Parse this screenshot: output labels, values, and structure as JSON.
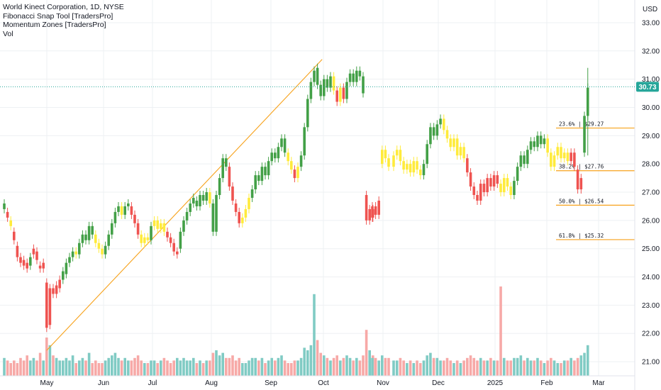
{
  "legend": {
    "title": "World Kinect Corporation, 1D, NYSE",
    "indicator_1": "Fibonacci Snap Tool [TradersPro]",
    "indicator_2": "Momentum Zones [TradersPro]",
    "indicator_3": "Vol"
  },
  "currency": "USD",
  "last_price": "30.73",
  "colors": {
    "up": "#43a047",
    "down": "#ef5350",
    "neutral": "#ffeb3b",
    "vol_up": "#80cbc4",
    "vol_down": "#f7a9a7",
    "fib": "#f7a21b",
    "last_price": "#26a69a",
    "grid": "#eef0f3"
  },
  "chart_data": {
    "type": "candlestick",
    "ylim": [
      20.5,
      33.25
    ],
    "y_ticks": [
      "21.00",
      "22.00",
      "23.00",
      "24.00",
      "25.00",
      "26.00",
      "27.00",
      "28.00",
      "29.00",
      "30.00",
      "31.00",
      "32.00",
      "33.00"
    ],
    "x_ticks": [
      "May",
      "Jun",
      "Jul",
      "Aug",
      "Sep",
      "Oct",
      "Nov",
      "Dec",
      "2025",
      "Feb",
      "Mar"
    ],
    "fib_levels": [
      {
        "label": "23.6% | $29.27",
        "value": 29.27
      },
      {
        "label": "38.2% | $27.76",
        "value": 27.76
      },
      {
        "label": "50.0% | $26.54",
        "value": 26.54
      },
      {
        "label": "61.8% | $25.32",
        "value": 25.32
      }
    ],
    "swing_line": {
      "from": 21.4,
      "to": 31.7
    },
    "candles": [
      {
        "o": 26.4,
        "c": 26.6,
        "z": "up",
        "v": 0.7
      },
      {
        "o": 26.3,
        "c": 26.1,
        "z": "down",
        "v": 0.6
      },
      {
        "o": 26.0,
        "c": 25.8,
        "z": "neutral",
        "v": 0.5
      },
      {
        "o": 25.6,
        "c": 25.3,
        "z": "down",
        "v": 0.6
      },
      {
        "o": 25.1,
        "c": 24.7,
        "z": "down",
        "v": 0.5
      },
      {
        "o": 24.7,
        "c": 24.5,
        "z": "down",
        "v": 0.7
      },
      {
        "o": 24.6,
        "c": 24.4,
        "z": "down",
        "v": 0.6
      },
      {
        "o": 24.5,
        "c": 24.3,
        "z": "down",
        "v": 0.8
      },
      {
        "o": 24.4,
        "c": 24.7,
        "z": "up",
        "v": 0.6
      },
      {
        "o": 24.8,
        "c": 25.0,
        "z": "down",
        "v": 0.7
      },
      {
        "o": 24.9,
        "c": 24.6,
        "z": "down",
        "v": 0.6
      },
      {
        "o": 24.4,
        "c": 24.3,
        "z": "down",
        "v": 0.9
      },
      {
        "o": 24.3,
        "c": 24.5,
        "z": "down",
        "v": 0.6
      },
      {
        "o": 23.8,
        "c": 22.2,
        "z": "down",
        "v": 1.5
      },
      {
        "o": 22.3,
        "c": 23.6,
        "z": "down",
        "v": 1.2
      },
      {
        "o": 23.6,
        "c": 23.4,
        "z": "down",
        "v": 0.8
      },
      {
        "o": 23.4,
        "c": 23.7,
        "z": "down",
        "v": 0.7
      },
      {
        "o": 23.6,
        "c": 23.9,
        "z": "down",
        "v": 0.6
      },
      {
        "o": 23.9,
        "c": 24.2,
        "z": "up",
        "v": 0.6
      },
      {
        "o": 24.1,
        "c": 24.5,
        "z": "up",
        "v": 0.7
      },
      {
        "o": 24.5,
        "c": 24.7,
        "z": "up",
        "v": 0.6
      },
      {
        "o": 24.7,
        "c": 24.9,
        "z": "up",
        "v": 0.8
      },
      {
        "o": 24.9,
        "c": 24.8,
        "z": "neutral",
        "v": 0.5
      },
      {
        "o": 24.8,
        "c": 25.2,
        "z": "up",
        "v": 0.6
      },
      {
        "o": 25.2,
        "c": 25.5,
        "z": "up",
        "v": 0.7
      },
      {
        "o": 25.5,
        "c": 25.3,
        "z": "up",
        "v": 0.6
      },
      {
        "o": 25.3,
        "c": 25.8,
        "z": "up",
        "v": 0.9
      },
      {
        "o": 25.8,
        "c": 25.5,
        "z": "up",
        "v": 0.5
      },
      {
        "o": 25.5,
        "c": 25.2,
        "z": "neutral",
        "v": 0.6
      },
      {
        "o": 25.2,
        "c": 25.0,
        "z": "neutral",
        "v": 0.5
      },
      {
        "o": 25.0,
        "c": 24.8,
        "z": "neutral",
        "v": 0.5
      },
      {
        "o": 24.8,
        "c": 25.1,
        "z": "up",
        "v": 0.6
      },
      {
        "o": 25.1,
        "c": 25.5,
        "z": "up",
        "v": 0.7
      },
      {
        "o": 25.5,
        "c": 25.9,
        "z": "up",
        "v": 0.8
      },
      {
        "o": 25.9,
        "c": 26.3,
        "z": "up",
        "v": 0.9
      },
      {
        "o": 26.3,
        "c": 26.5,
        "z": "up",
        "v": 0.7
      },
      {
        "o": 26.5,
        "c": 26.2,
        "z": "neutral",
        "v": 0.6
      },
      {
        "o": 26.2,
        "c": 26.5,
        "z": "up",
        "v": 0.7
      },
      {
        "o": 26.5,
        "c": 26.6,
        "z": "up",
        "v": 0.6
      },
      {
        "o": 26.5,
        "c": 26.2,
        "z": "down",
        "v": 0.6
      },
      {
        "o": 26.2,
        "c": 25.9,
        "z": "down",
        "v": 0.7
      },
      {
        "o": 25.9,
        "c": 25.5,
        "z": "down",
        "v": 0.8
      },
      {
        "o": 25.5,
        "c": 25.2,
        "z": "neutral",
        "v": 0.6
      },
      {
        "o": 25.2,
        "c": 25.4,
        "z": "neutral",
        "v": 0.5
      },
      {
        "o": 25.4,
        "c": 25.3,
        "z": "neutral",
        "v": 0.5
      },
      {
        "o": 25.3,
        "c": 25.8,
        "z": "up",
        "v": 0.6
      },
      {
        "o": 25.8,
        "c": 26.0,
        "z": "neutral",
        "v": 0.6
      },
      {
        "o": 26.0,
        "c": 25.7,
        "z": "neutral",
        "v": 0.5
      },
      {
        "o": 25.7,
        "c": 25.9,
        "z": "neutral",
        "v": 0.6
      },
      {
        "o": 25.9,
        "c": 25.6,
        "z": "neutral",
        "v": 0.7
      },
      {
        "o": 25.6,
        "c": 25.4,
        "z": "down",
        "v": 0.6
      },
      {
        "o": 25.4,
        "c": 25.2,
        "z": "down",
        "v": 0.5
      },
      {
        "o": 25.2,
        "c": 24.9,
        "z": "down",
        "v": 0.6
      },
      {
        "o": 24.8,
        "c": 24.9,
        "z": "down",
        "v": 0.7
      },
      {
        "o": 25.0,
        "c": 25.6,
        "z": "up",
        "v": 0.6
      },
      {
        "o": 25.6,
        "c": 26.0,
        "z": "up",
        "v": 0.7
      },
      {
        "o": 26.0,
        "c": 26.3,
        "z": "up",
        "v": 0.6
      },
      {
        "o": 26.3,
        "c": 26.6,
        "z": "up",
        "v": 0.6
      },
      {
        "o": 26.6,
        "c": 26.8,
        "z": "up",
        "v": 0.7
      },
      {
        "o": 26.7,
        "c": 26.5,
        "z": "up",
        "v": 0.5
      },
      {
        "o": 26.5,
        "c": 26.9,
        "z": "up",
        "v": 0.6
      },
      {
        "o": 26.9,
        "c": 26.7,
        "z": "up",
        "v": 0.5
      },
      {
        "o": 26.7,
        "c": 27.0,
        "z": "up",
        "v": 0.6
      },
      {
        "o": 27.0,
        "c": 26.6,
        "z": "neutral",
        "v": 0.6
      },
      {
        "o": 26.6,
        "c": 25.6,
        "z": "up",
        "v": 0.9
      },
      {
        "o": 25.6,
        "c": 26.9,
        "z": "up",
        "v": 1.0
      },
      {
        "o": 26.9,
        "c": 27.5,
        "z": "up",
        "v": 0.8
      },
      {
        "o": 27.5,
        "c": 28.2,
        "z": "up",
        "v": 0.9
      },
      {
        "o": 28.2,
        "c": 27.9,
        "z": "up",
        "v": 0.7
      },
      {
        "o": 27.9,
        "c": 27.2,
        "z": "down",
        "v": 0.7
      },
      {
        "o": 27.2,
        "c": 26.7,
        "z": "down",
        "v": 0.8
      },
      {
        "o": 26.6,
        "c": 26.3,
        "z": "down",
        "v": 0.6
      },
      {
        "o": 26.3,
        "c": 25.9,
        "z": "down",
        "v": 0.7
      },
      {
        "o": 25.9,
        "c": 26.1,
        "z": "neutral",
        "v": 0.5
      },
      {
        "o": 26.1,
        "c": 26.4,
        "z": "neutral",
        "v": 0.5
      },
      {
        "o": 26.4,
        "c": 26.8,
        "z": "neutral",
        "v": 0.6
      },
      {
        "o": 26.8,
        "c": 27.1,
        "z": "up",
        "v": 0.7
      },
      {
        "o": 27.1,
        "c": 27.6,
        "z": "up",
        "v": 0.7
      },
      {
        "o": 27.6,
        "c": 27.4,
        "z": "up",
        "v": 0.6
      },
      {
        "o": 27.4,
        "c": 27.9,
        "z": "up",
        "v": 0.7
      },
      {
        "o": 27.9,
        "c": 27.6,
        "z": "up",
        "v": 0.5
      },
      {
        "o": 27.6,
        "c": 28.1,
        "z": "up",
        "v": 0.6
      },
      {
        "o": 28.1,
        "c": 28.4,
        "z": "up",
        "v": 0.7
      },
      {
        "o": 28.4,
        "c": 28.2,
        "z": "up",
        "v": 0.6
      },
      {
        "o": 28.2,
        "c": 28.6,
        "z": "up",
        "v": 0.7
      },
      {
        "o": 28.6,
        "c": 28.9,
        "z": "up",
        "v": 0.8
      },
      {
        "o": 28.9,
        "c": 28.4,
        "z": "up",
        "v": 0.6
      },
      {
        "o": 28.4,
        "c": 28.1,
        "z": "neutral",
        "v": 0.5
      },
      {
        "o": 28.1,
        "c": 27.8,
        "z": "neutral",
        "v": 0.5
      },
      {
        "o": 27.8,
        "c": 27.5,
        "z": "down",
        "v": 0.6
      },
      {
        "o": 27.5,
        "c": 27.9,
        "z": "neutral",
        "v": 0.6
      },
      {
        "o": 27.9,
        "c": 28.3,
        "z": "up",
        "v": 0.7
      },
      {
        "o": 28.3,
        "c": 29.3,
        "z": "up",
        "v": 1.1
      },
      {
        "o": 29.3,
        "c": 30.3,
        "z": "up",
        "v": 1.0
      },
      {
        "o": 30.3,
        "c": 30.9,
        "z": "up",
        "v": 1.2
      },
      {
        "o": 30.9,
        "c": 31.3,
        "z": "up",
        "v": 3.2
      },
      {
        "o": 31.4,
        "c": 30.8,
        "z": "up",
        "v": 1.4
      },
      {
        "o": 30.8,
        "c": 30.4,
        "z": "up",
        "v": 0.9
      },
      {
        "o": 30.4,
        "c": 31.0,
        "z": "up",
        "v": 0.8
      },
      {
        "o": 31.0,
        "c": 30.7,
        "z": "up",
        "v": 0.7
      },
      {
        "o": 30.7,
        "c": 31.1,
        "z": "up",
        "v": 0.6
      },
      {
        "o": 31.1,
        "c": 30.6,
        "z": "neutral",
        "v": 0.7
      },
      {
        "o": 30.6,
        "c": 30.2,
        "z": "down",
        "v": 0.8
      },
      {
        "o": 30.2,
        "c": 30.7,
        "z": "neutral",
        "v": 0.6
      },
      {
        "o": 30.7,
        "c": 30.3,
        "z": "down",
        "v": 0.7
      },
      {
        "o": 30.3,
        "c": 30.9,
        "z": "up",
        "v": 0.8
      },
      {
        "o": 30.9,
        "c": 31.2,
        "z": "up",
        "v": 0.7
      },
      {
        "o": 31.2,
        "c": 30.9,
        "z": "up",
        "v": 0.6
      },
      {
        "o": 30.9,
        "c": 31.3,
        "z": "up",
        "v": 0.7
      },
      {
        "o": 31.3,
        "c": 31.1,
        "z": "up",
        "v": 0.6
      },
      {
        "o": 31.1,
        "c": 30.5,
        "z": "up",
        "v": 0.8
      },
      {
        "o": 26.9,
        "c": 26.0,
        "z": "down",
        "v": 1.8
      },
      {
        "o": 26.0,
        "c": 26.4,
        "z": "down",
        "v": 1.0
      },
      {
        "o": 26.4,
        "c": 26.1,
        "z": "down",
        "v": 0.8
      },
      {
        "o": 26.1,
        "c": 26.5,
        "z": "down",
        "v": 0.7
      },
      {
        "o": 26.5,
        "c": 26.2,
        "z": "down",
        "v": 0.7
      },
      {
        "o": 26.2,
        "c": 26.7,
        "z": "down",
        "v": 0.6
      },
      {
        "o": 28.0,
        "c": 28.5,
        "z": "neutral",
        "v": 0.8
      },
      {
        "o": 28.5,
        "c": 28.2,
        "z": "neutral",
        "v": 0.7
      },
      {
        "o": 28.2,
        "c": 27.9,
        "z": "neutral",
        "v": 0.7
      },
      {
        "o": 27.9,
        "c": 28.3,
        "z": "neutral",
        "v": 0.6
      },
      {
        "o": 28.3,
        "c": 28.5,
        "z": "neutral",
        "v": 0.6
      },
      {
        "o": 28.5,
        "c": 28.1,
        "z": "neutral",
        "v": 0.7
      },
      {
        "o": 28.1,
        "c": 27.8,
        "z": "neutral",
        "v": 0.6
      },
      {
        "o": 27.8,
        "c": 28.0,
        "z": "neutral",
        "v": 0.5
      },
      {
        "o": 28.0,
        "c": 27.7,
        "z": "neutral",
        "v": 0.6
      },
      {
        "o": 27.7,
        "c": 28.1,
        "z": "neutral",
        "v": 0.5
      },
      {
        "o": 28.1,
        "c": 27.8,
        "z": "neutral",
        "v": 0.6
      },
      {
        "o": 27.8,
        "c": 27.6,
        "z": "neutral",
        "v": 0.5
      },
      {
        "o": 27.6,
        "c": 28.0,
        "z": "up",
        "v": 0.6
      },
      {
        "o": 28.0,
        "c": 28.7,
        "z": "up",
        "v": 0.8
      },
      {
        "o": 28.7,
        "c": 29.3,
        "z": "up",
        "v": 0.9
      },
      {
        "o": 29.3,
        "c": 29.0,
        "z": "up",
        "v": 0.7
      },
      {
        "o": 29.0,
        "c": 29.4,
        "z": "up",
        "v": 0.7
      },
      {
        "o": 29.4,
        "c": 29.6,
        "z": "up",
        "v": 0.6
      },
      {
        "o": 29.6,
        "c": 29.2,
        "z": "neutral",
        "v": 0.6
      },
      {
        "o": 29.2,
        "c": 28.9,
        "z": "neutral",
        "v": 0.7
      },
      {
        "o": 28.9,
        "c": 28.6,
        "z": "neutral",
        "v": 0.6
      },
      {
        "o": 28.6,
        "c": 28.9,
        "z": "neutral",
        "v": 0.5
      },
      {
        "o": 28.9,
        "c": 28.3,
        "z": "neutral",
        "v": 0.6
      },
      {
        "o": 28.3,
        "c": 28.6,
        "z": "neutral",
        "v": 0.5
      },
      {
        "o": 28.6,
        "c": 28.2,
        "z": "neutral",
        "v": 0.6
      },
      {
        "o": 28.2,
        "c": 27.7,
        "z": "down",
        "v": 0.7
      },
      {
        "o": 27.7,
        "c": 27.2,
        "z": "down",
        "v": 0.8
      },
      {
        "o": 27.2,
        "c": 26.9,
        "z": "down",
        "v": 0.7
      },
      {
        "o": 26.9,
        "c": 26.7,
        "z": "down",
        "v": 0.6
      },
      {
        "o": 26.7,
        "c": 27.3,
        "z": "down",
        "v": 0.7
      },
      {
        "o": 27.3,
        "c": 27.0,
        "z": "down",
        "v": 0.6
      },
      {
        "o": 27.0,
        "c": 27.5,
        "z": "down",
        "v": 0.6
      },
      {
        "o": 27.5,
        "c": 27.2,
        "z": "down",
        "v": 0.7
      },
      {
        "o": 27.2,
        "c": 27.6,
        "z": "down",
        "v": 0.6
      },
      {
        "o": 27.6,
        "c": 27.3,
        "z": "down",
        "v": 0.6
      },
      {
        "o": 27.3,
        "c": 27.0,
        "z": "neutral",
        "v": 3.5
      },
      {
        "o": 27.0,
        "c": 27.5,
        "z": "neutral",
        "v": 0.7
      },
      {
        "o": 27.5,
        "c": 27.2,
        "z": "neutral",
        "v": 0.6
      },
      {
        "o": 27.2,
        "c": 26.9,
        "z": "neutral",
        "v": 0.6
      },
      {
        "o": 26.9,
        "c": 27.4,
        "z": "up",
        "v": 0.7
      },
      {
        "o": 27.4,
        "c": 27.9,
        "z": "up",
        "v": 0.7
      },
      {
        "o": 27.9,
        "c": 28.3,
        "z": "up",
        "v": 0.8
      },
      {
        "o": 28.3,
        "c": 28.0,
        "z": "up",
        "v": 0.6
      },
      {
        "o": 28.0,
        "c": 28.5,
        "z": "up",
        "v": 0.7
      },
      {
        "o": 28.5,
        "c": 28.8,
        "z": "up",
        "v": 0.6
      },
      {
        "o": 28.8,
        "c": 28.6,
        "z": "up",
        "v": 0.6
      },
      {
        "o": 28.6,
        "c": 29.0,
        "z": "up",
        "v": 0.7
      },
      {
        "o": 29.0,
        "c": 28.7,
        "z": "up",
        "v": 0.6
      },
      {
        "o": 28.7,
        "c": 28.9,
        "z": "up",
        "v": 0.5
      },
      {
        "o": 28.9,
        "c": 28.4,
        "z": "neutral",
        "v": 0.6
      },
      {
        "o": 28.4,
        "c": 27.9,
        "z": "neutral",
        "v": 0.7
      },
      {
        "o": 27.9,
        "c": 28.3,
        "z": "neutral",
        "v": 0.6
      },
      {
        "o": 28.3,
        "c": 28.6,
        "z": "neutral",
        "v": 0.5
      },
      {
        "o": 28.6,
        "c": 28.2,
        "z": "neutral",
        "v": 0.5
      },
      {
        "o": 28.2,
        "c": 28.4,
        "z": "neutral",
        "v": 0.6
      },
      {
        "o": 28.4,
        "c": 28.1,
        "z": "neutral",
        "v": 0.6
      },
      {
        "o": 28.1,
        "c": 28.4,
        "z": "down",
        "v": 0.7
      },
      {
        "o": 28.4,
        "c": 27.9,
        "z": "down",
        "v": 0.6
      },
      {
        "o": 27.8,
        "c": 27.1,
        "z": "down",
        "v": 0.7
      },
      {
        "o": 27.1,
        "c": 27.5,
        "z": "down",
        "v": 0.8
      },
      {
        "o": 28.4,
        "c": 29.7,
        "z": "up",
        "v": 0.9
      },
      {
        "o": 29.7,
        "c": 30.7,
        "z": "up",
        "v": 1.2
      }
    ]
  }
}
